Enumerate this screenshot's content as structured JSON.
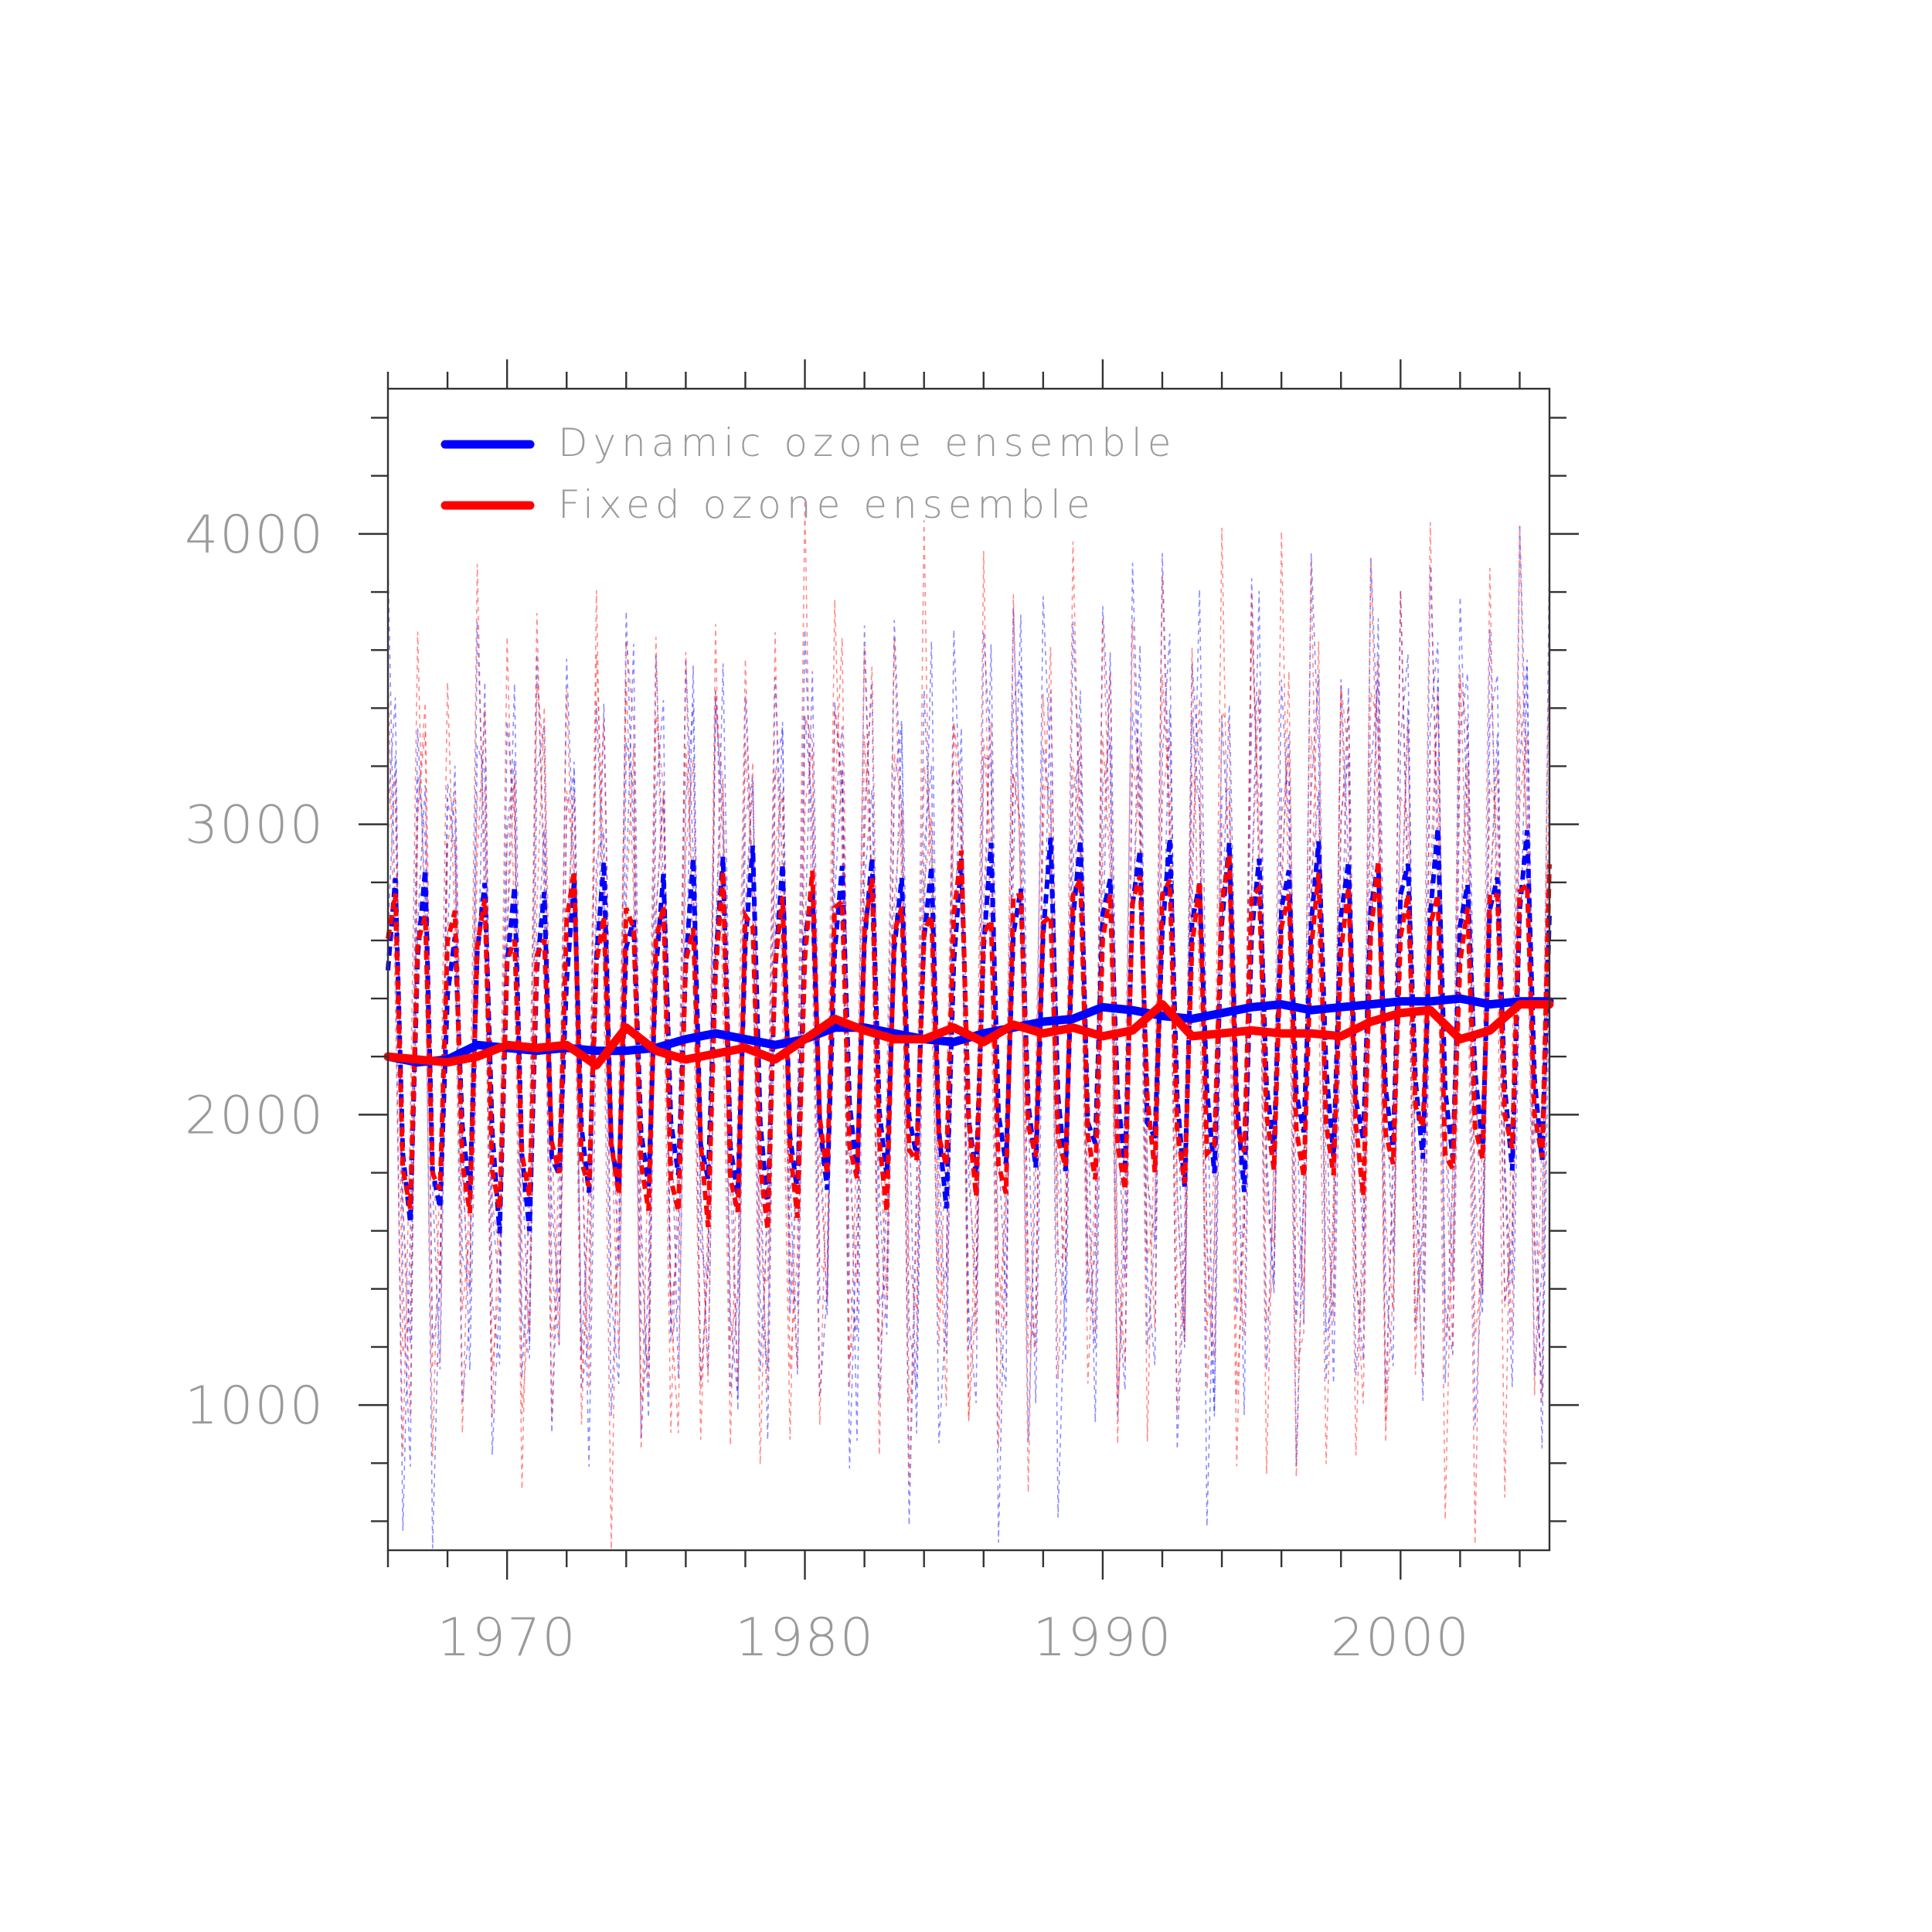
{
  "chart_data": {
    "type": "line",
    "title": "",
    "xlabel": "",
    "ylabel": "",
    "xlim": [
      1966,
      2005
    ],
    "ylim": [
      500,
      4500
    ],
    "x_major_ticks": [
      1970,
      1980,
      1990,
      2000
    ],
    "x_minor_step": 2,
    "y_major_ticks": [
      1000,
      2000,
      3000,
      4000
    ],
    "y_minor_step": 200,
    "x_tick_labels": [
      "1970",
      "1980",
      "1990",
      "2000"
    ],
    "y_tick_labels": [
      "1000",
      "2000",
      "3000",
      "4000"
    ],
    "legend_position": "top-left",
    "series": [
      {
        "name": "Dynamic ozone ensemble",
        "color": "#0000ff",
        "style": "solid-thick",
        "x": [
          1966,
          1967,
          1968,
          1969,
          1970,
          1971,
          1972,
          1973,
          1974,
          1975,
          1976,
          1977,
          1978,
          1979,
          1980,
          1981,
          1982,
          1983,
          1984,
          1985,
          1986,
          1987,
          1988,
          1989,
          1990,
          1991,
          1992,
          1993,
          1994,
          1995,
          1996,
          1997,
          1998,
          1999,
          2000,
          2001,
          2002,
          2003,
          2004,
          2005
        ],
        "values": [
          2200,
          2180,
          2190,
          2240,
          2230,
          2220,
          2230,
          2220,
          2220,
          2230,
          2260,
          2280,
          2260,
          2240,
          2260,
          2300,
          2300,
          2280,
          2260,
          2250,
          2280,
          2300,
          2320,
          2330,
          2370,
          2360,
          2340,
          2330,
          2350,
          2370,
          2380,
          2360,
          2370,
          2380,
          2390,
          2390,
          2400,
          2380,
          2390,
          2390
        ]
      },
      {
        "name": "Fixed ozone ensemble",
        "color": "#ff0000",
        "style": "solid-thick",
        "x": [
          1966,
          1967,
          1968,
          1969,
          1970,
          1971,
          1972,
          1973,
          1974,
          1975,
          1976,
          1977,
          1978,
          1979,
          1980,
          1981,
          1982,
          1983,
          1984,
          1985,
          1986,
          1987,
          1988,
          1989,
          1990,
          1991,
          1992,
          1993,
          1994,
          1995,
          1996,
          1997,
          1998,
          1999,
          2000,
          2001,
          2002,
          2003,
          2004,
          2005
        ],
        "values": [
          2200,
          2190,
          2180,
          2200,
          2240,
          2230,
          2240,
          2170,
          2300,
          2220,
          2190,
          2210,
          2230,
          2190,
          2260,
          2330,
          2290,
          2260,
          2260,
          2300,
          2250,
          2310,
          2280,
          2300,
          2270,
          2290,
          2380,
          2270,
          2280,
          2290,
          2280,
          2280,
          2270,
          2320,
          2350,
          2360,
          2260,
          2290,
          2380,
          2380
        ]
      }
    ]
  },
  "legend": {
    "items": [
      {
        "label": "Dynamic ozone ensemble",
        "color": "#0000ff"
      },
      {
        "label": "Fixed ozone ensemble",
        "color": "#ff0000"
      }
    ]
  }
}
